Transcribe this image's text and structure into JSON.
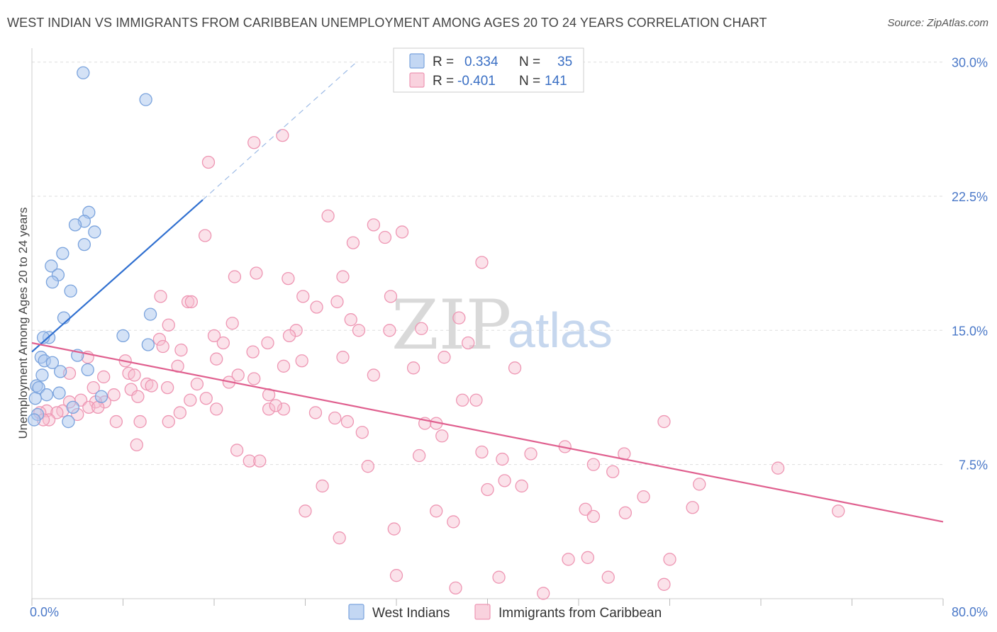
{
  "title": "WEST INDIAN VS IMMIGRANTS FROM CARIBBEAN UNEMPLOYMENT AMONG AGES 20 TO 24 YEARS CORRELATION CHART",
  "source": "Source: ZipAtlas.com",
  "watermark": {
    "zip": "ZIP",
    "atlas": "atlas"
  },
  "colors": {
    "west_indians_fill": "#aac6ee",
    "west_indians_stroke": "#7aa3dd",
    "west_indians_line": "#2f6fd0",
    "caribbean_fill": "#f7bfd0",
    "caribbean_stroke": "#ee96b3",
    "caribbean_line": "#e0608f",
    "grid": "#dddddd",
    "tick_label": "#4a78c8"
  },
  "legend": {
    "rows": [
      {
        "r_label": "R =",
        "r_value": "0.334",
        "n_label": "N =",
        "n_value": "35"
      },
      {
        "r_label": "R =",
        "r_value": "-0.401",
        "n_label": "N =",
        "n_value": "141"
      }
    ]
  },
  "bottom_legend": [
    "West Indians",
    "Immigrants from Caribbean"
  ],
  "chart_data": {
    "type": "scatter",
    "title": "WEST INDIAN VS IMMIGRANTS FROM CARIBBEAN UNEMPLOYMENT AMONG AGES 20 TO 24 YEARS CORRELATION CHART",
    "xlabel": "",
    "ylabel": "Unemployment Among Ages 20 to 24 years",
    "xlim": [
      0,
      80
    ],
    "ylim": [
      0,
      30.5
    ],
    "x_tick_labels": [
      "0.0%",
      "80.0%"
    ],
    "y_ticks": [
      7.5,
      15.0,
      22.5,
      30.0
    ],
    "y_tick_labels": [
      "7.5%",
      "15.0%",
      "22.5%",
      "30.0%"
    ],
    "grid": true,
    "legend_position": "top-center",
    "series": [
      {
        "name": "West Indians",
        "points": [
          [
            4.5,
            29.4
          ],
          [
            10.0,
            27.9
          ],
          [
            5.0,
            21.6
          ],
          [
            4.6,
            21.1
          ],
          [
            3.8,
            20.9
          ],
          [
            5.5,
            20.5
          ],
          [
            4.6,
            19.8
          ],
          [
            2.7,
            19.3
          ],
          [
            1.7,
            18.6
          ],
          [
            2.3,
            18.1
          ],
          [
            1.8,
            17.7
          ],
          [
            3.4,
            17.2
          ],
          [
            10.4,
            15.9
          ],
          [
            2.8,
            15.7
          ],
          [
            8.0,
            14.7
          ],
          [
            1.5,
            14.6
          ],
          [
            1.0,
            14.6
          ],
          [
            10.2,
            14.2
          ],
          [
            4.0,
            13.6
          ],
          [
            0.8,
            13.5
          ],
          [
            1.1,
            13.3
          ],
          [
            1.8,
            13.2
          ],
          [
            4.9,
            12.8
          ],
          [
            2.5,
            12.7
          ],
          [
            0.9,
            12.5
          ],
          [
            0.4,
            11.9
          ],
          [
            0.6,
            11.8
          ],
          [
            2.4,
            11.5
          ],
          [
            1.3,
            11.4
          ],
          [
            6.1,
            11.3
          ],
          [
            0.3,
            11.2
          ],
          [
            3.6,
            10.7
          ],
          [
            0.5,
            10.3
          ],
          [
            3.2,
            9.9
          ],
          [
            0.2,
            10.0
          ]
        ],
        "trend": {
          "x": [
            0,
            15
          ],
          "y": [
            13.8,
            22.3
          ],
          "extended_to": [
            28.5,
            30.0
          ]
        }
      },
      {
        "name": "Immigrants from Caribbean",
        "points": [
          [
            22,
            25.9
          ],
          [
            19.5,
            25.5
          ],
          [
            15.5,
            24.4
          ],
          [
            26,
            21.4
          ],
          [
            30,
            20.9
          ],
          [
            32.5,
            20.5
          ],
          [
            31,
            20.2
          ],
          [
            15.2,
            20.3
          ],
          [
            28.2,
            19.9
          ],
          [
            39.5,
            18.8
          ],
          [
            19.7,
            18.2
          ],
          [
            17.8,
            18.0
          ],
          [
            22.5,
            17.9
          ],
          [
            27.3,
            18.0
          ],
          [
            11.3,
            16.9
          ],
          [
            23.8,
            16.9
          ],
          [
            31.5,
            16.9
          ],
          [
            13.7,
            16.6
          ],
          [
            14,
            16.6
          ],
          [
            26.8,
            16.6
          ],
          [
            25,
            16.3
          ],
          [
            12,
            15.3
          ],
          [
            17.6,
            15.4
          ],
          [
            23.2,
            15.0
          ],
          [
            28,
            15.6
          ],
          [
            37.5,
            15.7
          ],
          [
            28.7,
            15.0
          ],
          [
            31.4,
            15.0
          ],
          [
            34.2,
            15.1
          ],
          [
            22.6,
            14.7
          ],
          [
            16,
            14.7
          ],
          [
            11.2,
            14.5
          ],
          [
            20.7,
            14.3
          ],
          [
            16.8,
            14.3
          ],
          [
            38.3,
            14.3
          ],
          [
            11.5,
            14.1
          ],
          [
            13.1,
            13.9
          ],
          [
            19.4,
            13.8
          ],
          [
            27.3,
            13.5
          ],
          [
            36.2,
            13.5
          ],
          [
            16.2,
            13.4
          ],
          [
            23.7,
            13.3
          ],
          [
            8.2,
            13.3
          ],
          [
            4.9,
            13.5
          ],
          [
            12.8,
            13.0
          ],
          [
            22.1,
            13.0
          ],
          [
            42.4,
            12.9
          ],
          [
            33.5,
            12.9
          ],
          [
            8.5,
            12.6
          ],
          [
            9.0,
            12.5
          ],
          [
            6.3,
            12.4
          ],
          [
            18.1,
            12.5
          ],
          [
            30.0,
            12.5
          ],
          [
            19.5,
            12.3
          ],
          [
            17.3,
            12.1
          ],
          [
            14.5,
            12.0
          ],
          [
            10.1,
            12.0
          ],
          [
            10.5,
            11.9
          ],
          [
            11.9,
            11.8
          ],
          [
            3.3,
            12.6
          ],
          [
            5.4,
            11.8
          ],
          [
            8.7,
            11.7
          ],
          [
            20.8,
            11.4
          ],
          [
            15.3,
            11.2
          ],
          [
            7.2,
            11.4
          ],
          [
            9.3,
            11.3
          ],
          [
            13.9,
            11.1
          ],
          [
            6.4,
            11.0
          ],
          [
            5.6,
            11.0
          ],
          [
            4.3,
            11.1
          ],
          [
            3.3,
            11.0
          ],
          [
            2.7,
            10.5
          ],
          [
            5.0,
            10.7
          ],
          [
            5.8,
            10.7
          ],
          [
            16.2,
            10.6
          ],
          [
            20.8,
            10.6
          ],
          [
            22.1,
            10.6
          ],
          [
            21.4,
            10.8
          ],
          [
            13.0,
            10.4
          ],
          [
            24.9,
            10.4
          ],
          [
            37.8,
            11.1
          ],
          [
            39.0,
            11.1
          ],
          [
            1.3,
            10.5
          ],
          [
            2.2,
            10.4
          ],
          [
            0.7,
            10.4
          ],
          [
            1.5,
            10.0
          ],
          [
            4.0,
            10.3
          ],
          [
            1.0,
            10.0
          ],
          [
            7.4,
            9.9
          ],
          [
            9.5,
            9.9
          ],
          [
            12.0,
            9.9
          ],
          [
            26.6,
            10.1
          ],
          [
            27.7,
            9.9
          ],
          [
            35.5,
            9.8
          ],
          [
            55.5,
            9.9
          ],
          [
            34.5,
            9.8
          ],
          [
            29.0,
            9.3
          ],
          [
            36.0,
            9.1
          ],
          [
            9.2,
            8.6
          ],
          [
            18.0,
            8.3
          ],
          [
            19.1,
            7.7
          ],
          [
            20.0,
            7.7
          ],
          [
            34.0,
            8.0
          ],
          [
            39.5,
            8.2
          ],
          [
            41.3,
            7.8
          ],
          [
            43.8,
            8.1
          ],
          [
            46.8,
            8.5
          ],
          [
            49.3,
            7.5
          ],
          [
            29.5,
            7.4
          ],
          [
            51.0,
            7.1
          ],
          [
            52.0,
            8.1
          ],
          [
            58.6,
            6.4
          ],
          [
            65.5,
            7.3
          ],
          [
            41.5,
            6.6
          ],
          [
            40.0,
            6.1
          ],
          [
            43.0,
            6.3
          ],
          [
            25.5,
            6.3
          ],
          [
            53.7,
            5.7
          ],
          [
            24.0,
            4.9
          ],
          [
            35.5,
            4.9
          ],
          [
            48.6,
            5.0
          ],
          [
            49.3,
            4.6
          ],
          [
            52.1,
            4.8
          ],
          [
            58.0,
            5.1
          ],
          [
            70.8,
            4.9
          ],
          [
            37.0,
            4.3
          ],
          [
            31.8,
            3.9
          ],
          [
            27.0,
            3.4
          ],
          [
            56.0,
            2.2
          ],
          [
            47.1,
            2.2
          ],
          [
            48.8,
            2.3
          ],
          [
            32.0,
            1.3
          ],
          [
            41.0,
            1.2
          ],
          [
            50.6,
            1.2
          ],
          [
            37.2,
            0.6
          ],
          [
            55.5,
            0.8
          ],
          [
            44.9,
            0.3
          ]
        ],
        "trend": {
          "x": [
            0,
            80
          ],
          "y": [
            14.3,
            4.3
          ]
        }
      }
    ]
  }
}
